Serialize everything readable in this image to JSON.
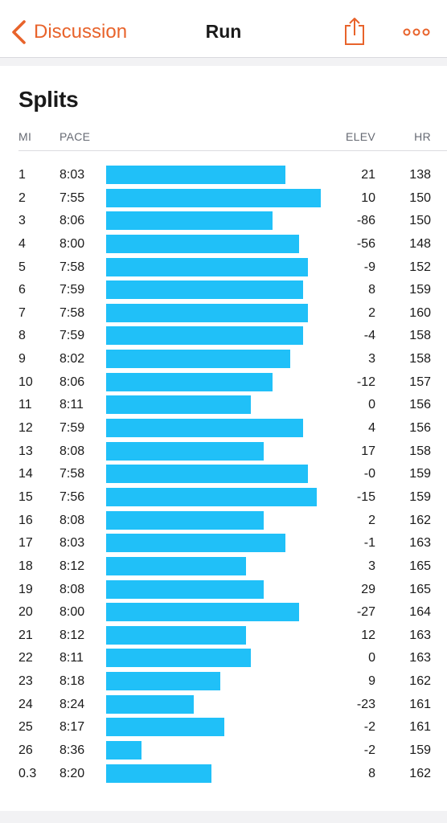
{
  "nav": {
    "back_label": "Discussion",
    "title": "Run",
    "icons": {
      "back": "chevron-left-icon",
      "share": "share-icon",
      "more": "more-icon"
    },
    "accent_color": "#e8632b"
  },
  "splits": {
    "title": "Splits",
    "bar_color": "#20c0f8",
    "columns": {
      "mi": "MI",
      "pace": "PACE",
      "elev": "ELEV",
      "hr": "HR"
    },
    "rows": [
      {
        "mi": "1",
        "pace": "8:03",
        "elev": "21",
        "hr": "138"
      },
      {
        "mi": "2",
        "pace": "7:55",
        "elev": "10",
        "hr": "150"
      },
      {
        "mi": "3",
        "pace": "8:06",
        "elev": "-86",
        "hr": "150"
      },
      {
        "mi": "4",
        "pace": "8:00",
        "elev": "-56",
        "hr": "148"
      },
      {
        "mi": "5",
        "pace": "7:58",
        "elev": "-9",
        "hr": "152"
      },
      {
        "mi": "6",
        "pace": "7:59",
        "elev": "8",
        "hr": "159"
      },
      {
        "mi": "7",
        "pace": "7:58",
        "elev": "2",
        "hr": "160"
      },
      {
        "mi": "8",
        "pace": "7:59",
        "elev": "-4",
        "hr": "158"
      },
      {
        "mi": "9",
        "pace": "8:02",
        "elev": "3",
        "hr": "158"
      },
      {
        "mi": "10",
        "pace": "8:06",
        "elev": "-12",
        "hr": "157"
      },
      {
        "mi": "11",
        "pace": "8:11",
        "elev": "0",
        "hr": "156"
      },
      {
        "mi": "12",
        "pace": "7:59",
        "elev": "4",
        "hr": "156"
      },
      {
        "mi": "13",
        "pace": "8:08",
        "elev": "17",
        "hr": "158"
      },
      {
        "mi": "14",
        "pace": "7:58",
        "elev": "-0",
        "hr": "159"
      },
      {
        "mi": "15",
        "pace": "7:56",
        "elev": "-15",
        "hr": "159"
      },
      {
        "mi": "16",
        "pace": "8:08",
        "elev": "2",
        "hr": "162"
      },
      {
        "mi": "17",
        "pace": "8:03",
        "elev": "-1",
        "hr": "163"
      },
      {
        "mi": "18",
        "pace": "8:12",
        "elev": "3",
        "hr": "165"
      },
      {
        "mi": "19",
        "pace": "8:08",
        "elev": "29",
        "hr": "165"
      },
      {
        "mi": "20",
        "pace": "8:00",
        "elev": "-27",
        "hr": "164"
      },
      {
        "mi": "21",
        "pace": "8:12",
        "elev": "12",
        "hr": "163"
      },
      {
        "mi": "22",
        "pace": "8:11",
        "elev": "0",
        "hr": "163"
      },
      {
        "mi": "23",
        "pace": "8:18",
        "elev": "9",
        "hr": "162"
      },
      {
        "mi": "24",
        "pace": "8:24",
        "elev": "-23",
        "hr": "161"
      },
      {
        "mi": "25",
        "pace": "8:17",
        "elev": "-2",
        "hr": "161"
      },
      {
        "mi": "26",
        "pace": "8:36",
        "elev": "-2",
        "hr": "159"
      },
      {
        "mi": "0.3",
        "pace": "8:20",
        "elev": "8",
        "hr": "162"
      }
    ]
  }
}
